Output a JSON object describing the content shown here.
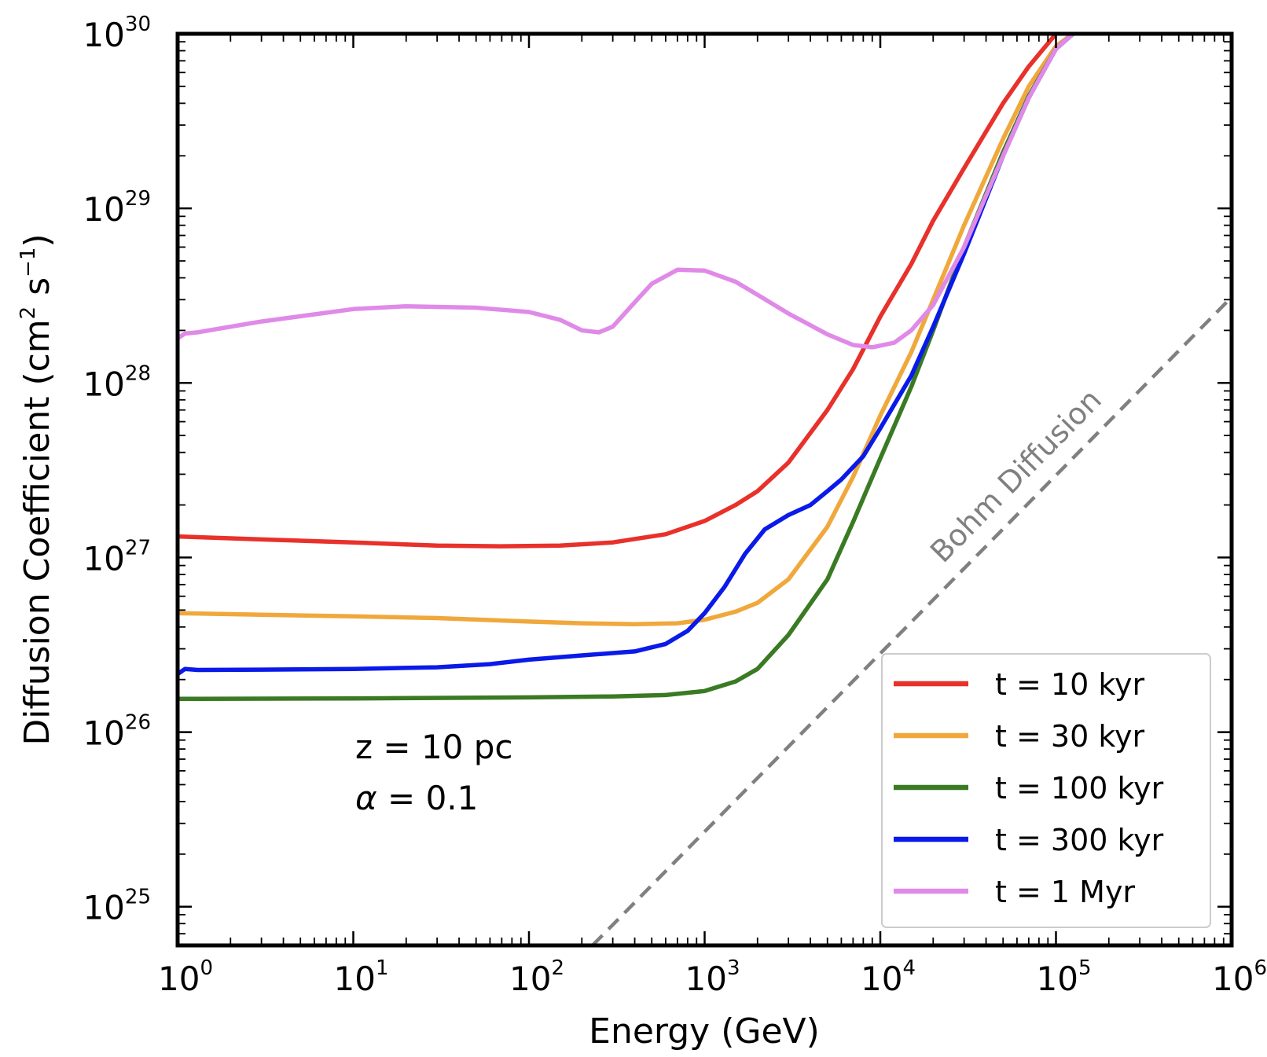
{
  "chart_data": {
    "type": "line",
    "title": "",
    "xlabel": "Energy (GeV)",
    "ylabel_main": "Diffusion Coefficient (cm",
    "ylabel_sup1": "2",
    "ylabel_mid": " s",
    "ylabel_sup2": "−1",
    "ylabel_end": ")",
    "xscale": "log",
    "yscale": "log",
    "xlim": [
      1,
      1000000
    ],
    "ylim": [
      6e+24,
      1e+30
    ],
    "grid": false,
    "legend_position": "bottom-right",
    "x_ticks": [
      {
        "base": "10",
        "exp": "0",
        "value": 1
      },
      {
        "base": "10",
        "exp": "1",
        "value": 10
      },
      {
        "base": "10",
        "exp": "2",
        "value": 100
      },
      {
        "base": "10",
        "exp": "3",
        "value": 1000
      },
      {
        "base": "10",
        "exp": "4",
        "value": 10000
      },
      {
        "base": "10",
        "exp": "5",
        "value": 100000
      },
      {
        "base": "10",
        "exp": "6",
        "value": 1000000
      }
    ],
    "y_ticks": [
      {
        "base": "10",
        "exp": "25",
        "value": 1e+25
      },
      {
        "base": "10",
        "exp": "26",
        "value": 1e+26
      },
      {
        "base": "10",
        "exp": "27",
        "value": 1e+27
      },
      {
        "base": "10",
        "exp": "28",
        "value": 1e+28
      },
      {
        "base": "10",
        "exp": "29",
        "value": 1e+29
      },
      {
        "base": "10",
        "exp": "30",
        "value": 1e+30
      }
    ],
    "annotations": {
      "z_label": "z = 10 pc",
      "alpha_symbol": "α",
      "alpha_rest": " = 0.1",
      "bohm_label": "Bohm Diffusion"
    },
    "series": [
      {
        "name": "t = 10 kyr",
        "color": "#e8312a",
        "points": [
          [
            1,
            1.32e+27
          ],
          [
            3,
            1.27e+27
          ],
          [
            10,
            1.22e+27
          ],
          [
            30,
            1.17e+27
          ],
          [
            70,
            1.16e+27
          ],
          [
            150,
            1.17e+27
          ],
          [
            300,
            1.22e+27
          ],
          [
            600,
            1.36e+27
          ],
          [
            1000,
            1.62e+27
          ],
          [
            1500,
            2e+27
          ],
          [
            2000,
            2.4e+27
          ],
          [
            3000,
            3.5e+27
          ],
          [
            5000,
            7e+27
          ],
          [
            7000,
            1.2e+28
          ],
          [
            10000,
            2.4e+28
          ],
          [
            15000,
            4.8e+28
          ],
          [
            20000,
            8.5e+28
          ],
          [
            30000,
            1.7e+29
          ],
          [
            50000,
            4e+29
          ],
          [
            70000,
            6.5e+29
          ],
          [
            100000,
            1e+30
          ]
        ]
      },
      {
        "name": "t = 30 kyr",
        "color": "#f0a83c",
        "points": [
          [
            1,
            4.8e+26
          ],
          [
            3,
            4.7e+26
          ],
          [
            10,
            4.6e+26
          ],
          [
            30,
            4.5e+26
          ],
          [
            100,
            4.3e+26
          ],
          [
            200,
            4.2e+26
          ],
          [
            400,
            4.15e+26
          ],
          [
            700,
            4.2e+26
          ],
          [
            1000,
            4.4e+26
          ],
          [
            1500,
            4.9e+26
          ],
          [
            2000,
            5.5e+26
          ],
          [
            3000,
            7.5e+26
          ],
          [
            5000,
            1.5e+27
          ],
          [
            7000,
            2.9e+27
          ],
          [
            10000,
            6.5e+27
          ],
          [
            15000,
            1.5e+28
          ],
          [
            20000,
            3e+28
          ],
          [
            30000,
            8e+28
          ],
          [
            50000,
            2.5e+29
          ],
          [
            70000,
            5e+29
          ],
          [
            100000,
            8.5e+29
          ],
          [
            125000,
            1e+30
          ]
        ]
      },
      {
        "name": "t = 100 kyr",
        "color": "#3a7a23",
        "points": [
          [
            1,
            1.55e+26
          ],
          [
            10,
            1.56e+26
          ],
          [
            100,
            1.58e+26
          ],
          [
            300,
            1.6e+26
          ],
          [
            600,
            1.63e+26
          ],
          [
            1000,
            1.72e+26
          ],
          [
            1500,
            1.95e+26
          ],
          [
            2000,
            2.3e+26
          ],
          [
            3000,
            3.6e+26
          ],
          [
            5000,
            7.5e+26
          ],
          [
            7000,
            1.6e+27
          ],
          [
            10000,
            3.7e+27
          ],
          [
            15000,
            9.5e+27
          ],
          [
            20000,
            2e+28
          ],
          [
            30000,
            6e+28
          ],
          [
            50000,
            2.1e+29
          ],
          [
            70000,
            4.4e+29
          ],
          [
            100000,
            8.2e+29
          ],
          [
            125000,
            1e+30
          ]
        ]
      },
      {
        "name": "t = 300 kyr",
        "color": "#0a1ae8",
        "points": [
          [
            1,
            2.15e+26
          ],
          [
            1.1,
            2.3e+26
          ],
          [
            1.3,
            2.27e+26
          ],
          [
            3,
            2.28e+26
          ],
          [
            10,
            2.3e+26
          ],
          [
            30,
            2.35e+26
          ],
          [
            60,
            2.45e+26
          ],
          [
            100,
            2.6e+26
          ],
          [
            200,
            2.75e+26
          ],
          [
            400,
            2.9e+26
          ],
          [
            600,
            3.2e+26
          ],
          [
            800,
            3.8e+26
          ],
          [
            1000,
            4.8e+26
          ],
          [
            1300,
            6.8e+26
          ],
          [
            1700,
            1.05e+27
          ],
          [
            2200,
            1.45e+27
          ],
          [
            3000,
            1.75e+27
          ],
          [
            4000,
            2e+27
          ],
          [
            5000,
            2.4e+27
          ],
          [
            6000,
            2.8e+27
          ],
          [
            8000,
            3.8e+27
          ],
          [
            10000,
            5.5e+27
          ],
          [
            15000,
            1.1e+28
          ],
          [
            20000,
            2.1e+28
          ],
          [
            30000,
            5.5e+28
          ],
          [
            50000,
            2e+29
          ],
          [
            70000,
            4.3e+29
          ],
          [
            100000,
            8.2e+29
          ],
          [
            125000,
            1e+30
          ]
        ]
      },
      {
        "name": "t = 1 Myr",
        "color": "#e08ae8",
        "points": [
          [
            1,
            1.8e+28
          ],
          [
            1.1,
            1.92e+28
          ],
          [
            1.3,
            1.95e+28
          ],
          [
            3,
            2.25e+28
          ],
          [
            10,
            2.65e+28
          ],
          [
            20,
            2.75e+28
          ],
          [
            50,
            2.7e+28
          ],
          [
            100,
            2.55e+28
          ],
          [
            150,
            2.3e+28
          ],
          [
            200,
            2e+28
          ],
          [
            250,
            1.95e+28
          ],
          [
            300,
            2.1e+28
          ],
          [
            400,
            2.9e+28
          ],
          [
            500,
            3.7e+28
          ],
          [
            700,
            4.45e+28
          ],
          [
            1000,
            4.4e+28
          ],
          [
            1500,
            3.8e+28
          ],
          [
            2000,
            3.2e+28
          ],
          [
            3000,
            2.5e+28
          ],
          [
            5000,
            1.9e+28
          ],
          [
            7000,
            1.65e+28
          ],
          [
            9000,
            1.6e+28
          ],
          [
            12000,
            1.7e+28
          ],
          [
            15000,
            2e+28
          ],
          [
            20000,
            2.8e+28
          ],
          [
            30000,
            6e+28
          ],
          [
            50000,
            2e+29
          ],
          [
            70000,
            4.3e+29
          ],
          [
            100000,
            8.2e+29
          ],
          [
            125000,
            1e+30
          ]
        ]
      },
      {
        "name": "Bohm Diffusion",
        "color": "#808080",
        "dashed": true,
        "in_legend": false,
        "points": [
          [
            230,
            6e+24
          ],
          [
            1000000,
            3.1e+28
          ]
        ]
      }
    ]
  }
}
